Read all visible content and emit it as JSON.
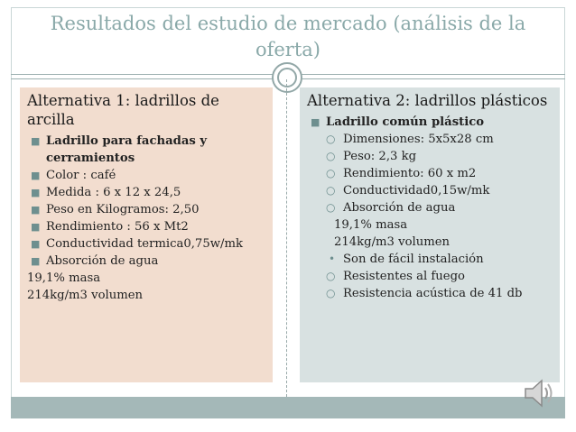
{
  "title": "Resultados del estudio de mercado (análisis de la oferta)",
  "left": {
    "heading": "Alternativa 1: ladrillos de arcilla",
    "items": [
      {
        "text": "Ladrillo para fachadas y cerramientos",
        "bold": true
      },
      {
        "text": "Color : café"
      },
      {
        "text": "Medida : 6 x 12 x 24,5"
      },
      {
        "text": "Peso en Kilogramos: 2,50"
      },
      {
        "text": "Rendimiento : 56 x Mt2"
      },
      {
        "text": "Conductividad termica0,75w/mk"
      },
      {
        "text": "Absorción de agua"
      }
    ],
    "extra": [
      "19,1% masa",
      "214kg/m3  volumen"
    ]
  },
  "right": {
    "heading": "Alternativa 2: ladrillos plásticos",
    "main_item": "Ladrillo común plástico",
    "sub_items": [
      "Dimensiones: 5x5x28 cm",
      "Peso: 2,3 kg",
      "Rendimiento: 60 x m2",
      "Conductividad0,15w/mk",
      "Absorción de agua"
    ],
    "extra": [
      "19,1% masa",
      "214kg/m3 volumen"
    ],
    "dot_item": "Son  de fácil instalación",
    "tail_items": [
      "Resistentes al fuego",
      "Resistencia acústica de 41 db"
    ]
  },
  "icons": {
    "square_bullet": "■",
    "hollow_bullet": "○",
    "dot_bullet": "•",
    "speaker": "speaker-icon"
  }
}
